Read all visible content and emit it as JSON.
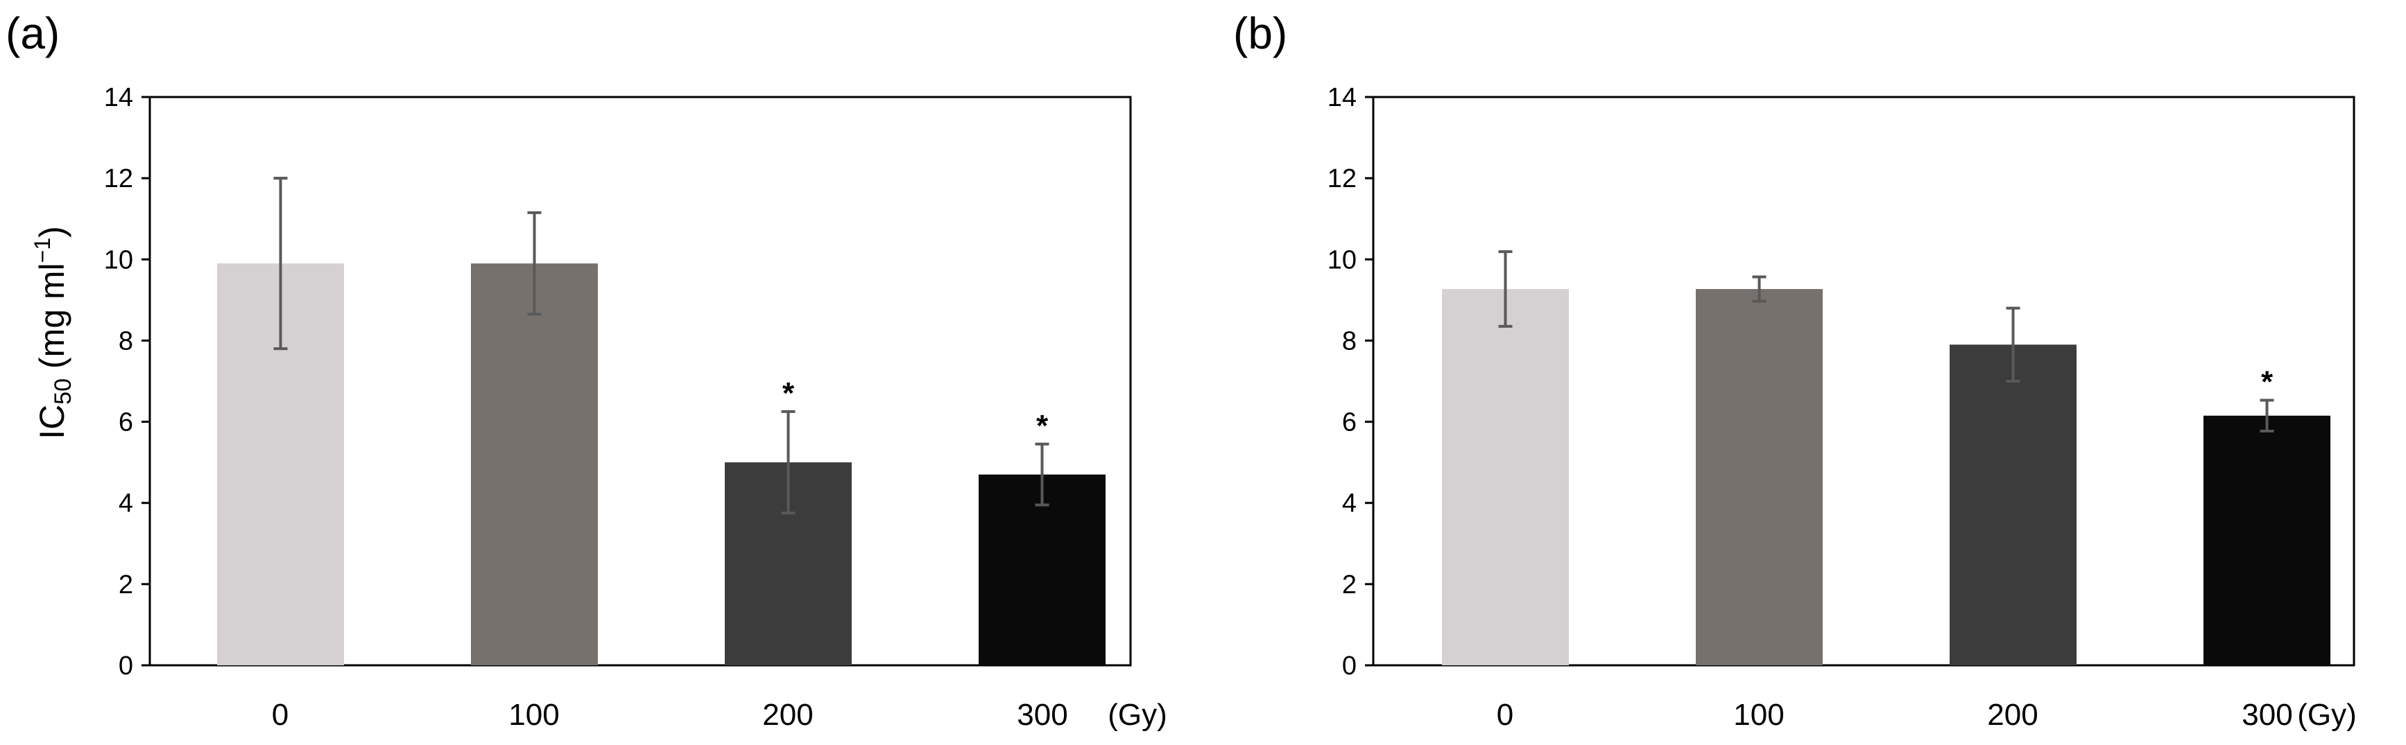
{
  "figure": {
    "ylabel_main": "IC",
    "ylabel_sub": "50",
    "ylabel_rest": " (mg ml",
    "ylabel_sup": "−1",
    "ylabel_close": ")",
    "y_ticks": [
      "0",
      "2",
      "4",
      "6",
      "8",
      "10",
      "12",
      "14"
    ],
    "bar_colors": [
      "#d5d1d2",
      "#77716e",
      "#3c3c3c",
      "#0a0a0a"
    ],
    "error_color": "#595959"
  },
  "chart_data": [
    {
      "type": "bar",
      "panel_label": "(a)",
      "categories": [
        "0",
        "100",
        "200",
        "300"
      ],
      "unit_label": "(Gy)",
      "values": [
        9.9,
        9.9,
        5.0,
        4.7
      ],
      "errors": [
        2.1,
        1.25,
        1.25,
        0.75
      ],
      "significance": [
        "",
        "",
        "*",
        "*"
      ],
      "ylim": [
        0,
        14
      ],
      "ylabel": "IC50 (mg ml−1)"
    },
    {
      "type": "bar",
      "panel_label": "(b)",
      "categories": [
        "0",
        "100",
        "200",
        "300"
      ],
      "unit_label": "(Gy)",
      "values": [
        9.27,
        9.27,
        7.9,
        6.15
      ],
      "errors": [
        0.92,
        0.3,
        0.9,
        0.38
      ],
      "significance": [
        "",
        "",
        "",
        "*"
      ],
      "ylim": [
        0,
        14
      ],
      "ylabel": ""
    }
  ]
}
